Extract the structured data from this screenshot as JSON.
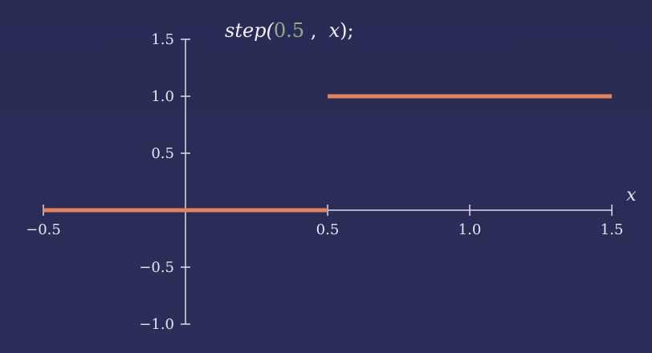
{
  "formula": {
    "func": "step(",
    "param": "0.5",
    "sep": " ,  ",
    "var": "x",
    "tail": ");"
  },
  "colors": {
    "background": "#2b2d58",
    "axis": "#dcdce6",
    "series": "#e8825a",
    "param": "#8fb08a",
    "text": "#f2f2f6"
  },
  "chart_data": {
    "type": "line",
    "title": "",
    "xlabel": "x",
    "ylabel": "",
    "xlim": [
      -0.5,
      1.5
    ],
    "ylim": [
      -1.0,
      1.5
    ],
    "grid": false,
    "x_ticks": [
      -0.5,
      0.5,
      1.0,
      1.5
    ],
    "x_tick_labels": [
      "−0.5",
      "0.5",
      "1.0",
      "1.5"
    ],
    "y_ticks": [
      1.5,
      1.0,
      0.5,
      -0.5,
      -1.0
    ],
    "y_tick_labels": [
      "1.5",
      "1.0",
      "0.5",
      "−0.5",
      "−1.0"
    ],
    "series": [
      {
        "segments": [
          {
            "x": [
              -0.5,
              0.5
            ],
            "y": [
              0,
              0
            ]
          },
          {
            "x": [
              0.5,
              1.5
            ],
            "y": [
              1,
              1
            ]
          }
        ]
      }
    ]
  }
}
